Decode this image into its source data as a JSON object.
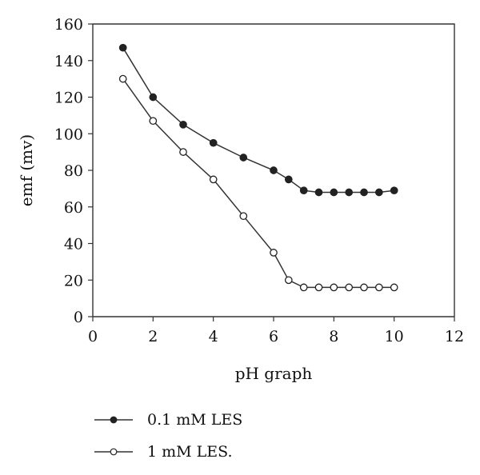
{
  "chart_data": {
    "type": "line",
    "title": "",
    "xlabel": "pH graph",
    "ylabel": "emf (mv)",
    "xlim": [
      0,
      12
    ],
    "ylim": [
      0,
      160
    ],
    "xticks": [
      0,
      2,
      4,
      6,
      8,
      10,
      12
    ],
    "yticks": [
      0,
      20,
      40,
      60,
      80,
      100,
      120,
      140,
      160
    ],
    "grid": false,
    "legend_position": "bottom-left",
    "series": [
      {
        "name": "0.1 mM LES",
        "marker": "filled-circle",
        "color": "#222222",
        "x": [
          1,
          2,
          3,
          4,
          5,
          6,
          6.5,
          7,
          7.5,
          8,
          8.5,
          9,
          9.5,
          10
        ],
        "y": [
          147,
          120,
          105,
          95,
          87,
          80,
          75,
          69,
          68,
          68,
          68,
          68,
          68,
          69
        ]
      },
      {
        "name": "1 mM LES.",
        "marker": "open-circle",
        "color": "#222222",
        "x": [
          1,
          2,
          3,
          4,
          5,
          6,
          6.5,
          7,
          7.5,
          8,
          8.5,
          9,
          9.5,
          10
        ],
        "y": [
          130,
          107,
          90,
          75,
          55,
          35,
          20,
          16,
          16,
          16,
          16,
          16,
          16,
          16
        ]
      }
    ]
  }
}
